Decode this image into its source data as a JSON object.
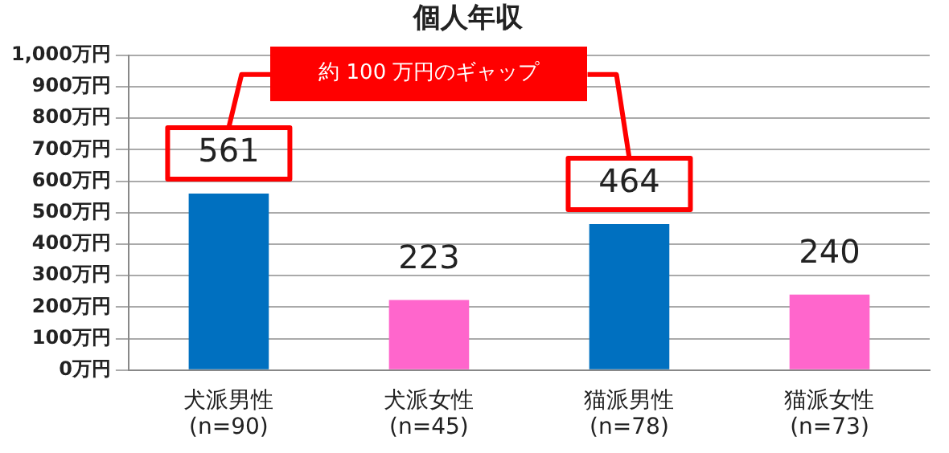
{
  "chart_data": {
    "type": "bar",
    "title": "個人年収",
    "categories": [
      "犬派男性\n(n=90)",
      "犬派女性\n(n=45)",
      "猫派男性\n(n=78)",
      "猫派女性\n(n=73)"
    ],
    "values": [
      561,
      223,
      464,
      240
    ],
    "colors": [
      "#0070c0",
      "#ff66cc",
      "#0070c0",
      "#ff66cc"
    ],
    "data_labels": true,
    "ylim": [
      0,
      1000
    ],
    "yticks": [
      {
        "value": 0,
        "label": "0万円"
      },
      {
        "value": 100,
        "label": "100万円"
      },
      {
        "value": 200,
        "label": "200万円"
      },
      {
        "value": 300,
        "label": "300万円"
      },
      {
        "value": 400,
        "label": "400万円"
      },
      {
        "value": 500,
        "label": "500万円"
      },
      {
        "value": 600,
        "label": "600万円"
      },
      {
        "value": 700,
        "label": "700万円"
      },
      {
        "value": 800,
        "label": "800万円"
      },
      {
        "value": 900,
        "label": "900万円"
      },
      {
        "value": 1000,
        "label": "1,000万円"
      }
    ],
    "grid": "y",
    "legend": false,
    "annotations": [
      "約 100 万円のギャップ"
    ]
  }
}
